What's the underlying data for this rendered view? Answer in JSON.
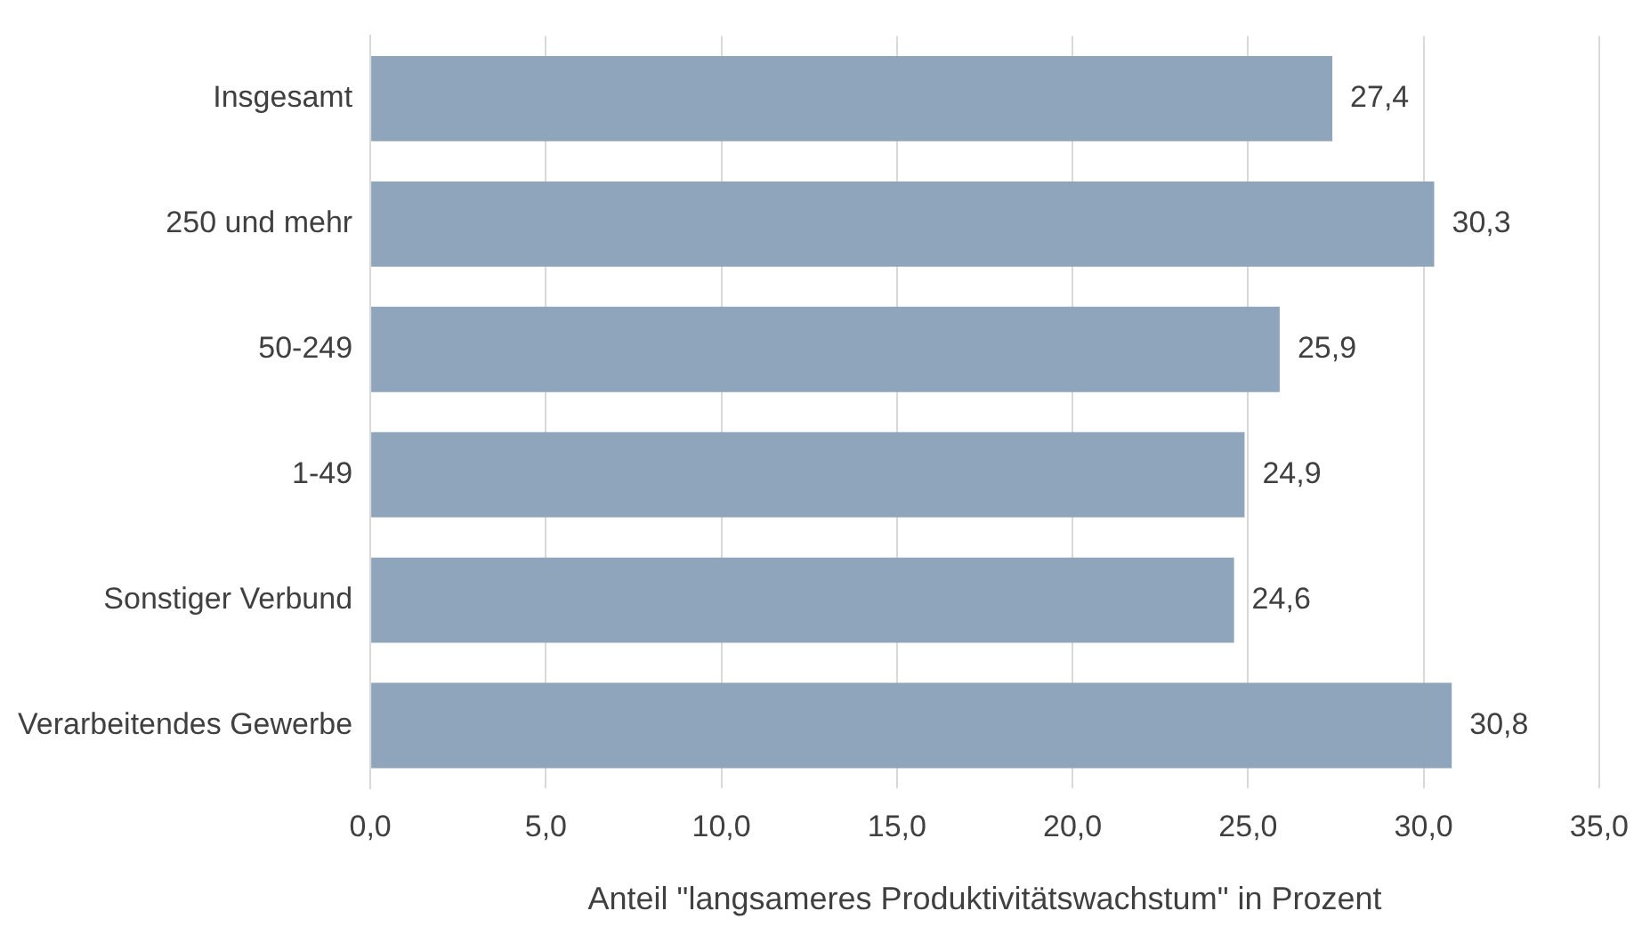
{
  "chart_data": {
    "type": "bar",
    "orientation": "horizontal",
    "xlabel": "Anteil \"langsameres Produktivitätswachstum\" in Prozent",
    "categories": [
      "Insgesamt",
      "250 und mehr",
      "50-249",
      "1-49",
      "Sonstiger Verbund",
      "Verarbeitendes Gewerbe"
    ],
    "values": [
      27.4,
      30.3,
      25.9,
      24.9,
      24.6,
      30.8
    ],
    "value_labels": [
      "27,4",
      "30,3",
      "25,9",
      "24,9",
      "24,6",
      "30,8"
    ],
    "color": "#8fa5bb",
    "xlim": [
      0,
      35
    ],
    "xticks": [
      {
        "value": 0,
        "label": "0,0"
      },
      {
        "value": 5,
        "label": "5,0"
      },
      {
        "value": 10,
        "label": "10,0"
      },
      {
        "value": 15,
        "label": "15,0"
      },
      {
        "value": 20,
        "label": "20,0"
      },
      {
        "value": 25,
        "label": "25,0"
      },
      {
        "value": 30,
        "label": "30,0"
      },
      {
        "value": 35,
        "label": "35,0"
      }
    ],
    "grid": "x",
    "legend": false
  }
}
